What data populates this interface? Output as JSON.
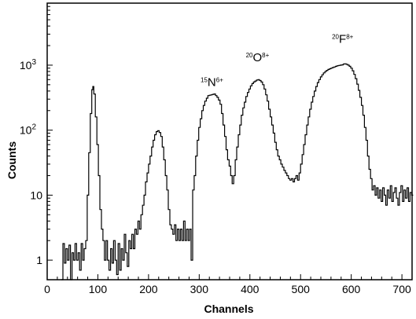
{
  "chart_data": {
    "type": "line",
    "style": "step histogram",
    "title": "",
    "xlabel": "Channels",
    "ylabel": "Counts",
    "xscale": "linear",
    "yscale": "log",
    "xlim": [
      0,
      720
    ],
    "ylim": [
      0.5,
      9000
    ],
    "grid": false,
    "x_ticks": [
      0,
      100,
      200,
      300,
      400,
      500,
      600,
      700
    ],
    "y_ticks": [
      {
        "value": 1,
        "label": "1"
      },
      {
        "value": 10,
        "label": "10"
      },
      {
        "value": 100,
        "label": "10",
        "exp": "2"
      },
      {
        "value": 1000,
        "label": "10",
        "exp": "3"
      }
    ],
    "annotations": [
      {
        "mass": "15",
        "element": "N",
        "charge": "6+",
        "x": 325,
        "y": 480
      },
      {
        "mass": "20",
        "element": "O",
        "charge": "8+",
        "x": 415,
        "y": 1150
      },
      {
        "mass": "20",
        "element": "F",
        "charge": "8+",
        "x": 583,
        "y": 2200
      }
    ],
    "peaks": [
      {
        "label": "",
        "channel": 90,
        "counts": 450
      },
      {
        "label": "",
        "channel": 220,
        "counts": 95
      },
      {
        "label": "15N6+",
        "channel": 330,
        "counts": 350
      },
      {
        "label": "20O8+",
        "channel": 418,
        "counts": 600
      },
      {
        "label": "20F8+",
        "channel": 585,
        "counts": 1050
      }
    ],
    "series": [
      {
        "color": "#000000",
        "points": [
          [
            28,
            0.45
          ],
          [
            31,
            1.8
          ],
          [
            34,
            0.9
          ],
          [
            37,
            1.5
          ],
          [
            40,
            1
          ],
          [
            43,
            1.7
          ],
          [
            46,
            0.45
          ],
          [
            49,
            1.3
          ],
          [
            52,
            1
          ],
          [
            55,
            1.8
          ],
          [
            58,
            1
          ],
          [
            61,
            1.3
          ],
          [
            64,
            0.7
          ],
          [
            67,
            1.8
          ],
          [
            70,
            1
          ],
          [
            73,
            1.5
          ],
          [
            76,
            2
          ],
          [
            79,
            10
          ],
          [
            82,
            45
          ],
          [
            85,
            180
          ],
          [
            88,
            420
          ],
          [
            90,
            470
          ],
          [
            92,
            360
          ],
          [
            95,
            160
          ],
          [
            98,
            60
          ],
          [
            101,
            20
          ],
          [
            104,
            6
          ],
          [
            107,
            3
          ],
          [
            110,
            2
          ],
          [
            113,
            1
          ],
          [
            116,
            2
          ],
          [
            119,
            1
          ],
          [
            122,
            0.7
          ],
          [
            125,
            1.5
          ],
          [
            128,
            0.9
          ],
          [
            131,
            2
          ],
          [
            134,
            1
          ],
          [
            137,
            0.6
          ],
          [
            140,
            1.8
          ],
          [
            143,
            0.7
          ],
          [
            146,
            1.5
          ],
          [
            149,
            1
          ],
          [
            152,
            2.5
          ],
          [
            155,
            1.3
          ],
          [
            158,
            0.8
          ],
          [
            161,
            2
          ],
          [
            164,
            1.5
          ],
          [
            167,
            2.5
          ],
          [
            170,
            1.5
          ],
          [
            173,
            3
          ],
          [
            176,
            2.5
          ],
          [
            179,
            4
          ],
          [
            182,
            3
          ],
          [
            185,
            5
          ],
          [
            188,
            7
          ],
          [
            191,
            10
          ],
          [
            194,
            16
          ],
          [
            197,
            22
          ],
          [
            200,
            30
          ],
          [
            203,
            40
          ],
          [
            206,
            55
          ],
          [
            209,
            70
          ],
          [
            212,
            85
          ],
          [
            215,
            95
          ],
          [
            218,
            98
          ],
          [
            221,
            92
          ],
          [
            224,
            80
          ],
          [
            227,
            55
          ],
          [
            230,
            35
          ],
          [
            233,
            20
          ],
          [
            236,
            12
          ],
          [
            239,
            6
          ],
          [
            242,
            3.5
          ],
          [
            245,
            3
          ],
          [
            248,
            2.5
          ],
          [
            251,
            3.5
          ],
          [
            254,
            2
          ],
          [
            257,
            3
          ],
          [
            260,
            2
          ],
          [
            263,
            3
          ],
          [
            266,
            2
          ],
          [
            269,
            4
          ],
          [
            272,
            2
          ],
          [
            275,
            3
          ],
          [
            278,
            2
          ],
          [
            281,
            3
          ],
          [
            284,
            1
          ],
          [
            287,
            12
          ],
          [
            290,
            20
          ],
          [
            293,
            40
          ],
          [
            296,
            70
          ],
          [
            299,
            110
          ],
          [
            302,
            150
          ],
          [
            305,
            200
          ],
          [
            308,
            240
          ],
          [
            311,
            280
          ],
          [
            314,
            310
          ],
          [
            317,
            340
          ],
          [
            320,
            345
          ],
          [
            323,
            350
          ],
          [
            326,
            355
          ],
          [
            329,
            360
          ],
          [
            332,
            340
          ],
          [
            335,
            320
          ],
          [
            338,
            290
          ],
          [
            341,
            250
          ],
          [
            344,
            180
          ],
          [
            347,
            120
          ],
          [
            350,
            80
          ],
          [
            353,
            50
          ],
          [
            356,
            35
          ],
          [
            359,
            28
          ],
          [
            362,
            20
          ],
          [
            365,
            15
          ],
          [
            368,
            20
          ],
          [
            371,
            35
          ],
          [
            374,
            55
          ],
          [
            377,
            85
          ],
          [
            380,
            120
          ],
          [
            383,
            170
          ],
          [
            386,
            220
          ],
          [
            389,
            270
          ],
          [
            392,
            330
          ],
          [
            395,
            380
          ],
          [
            398,
            430
          ],
          [
            401,
            480
          ],
          [
            404,
            520
          ],
          [
            407,
            550
          ],
          [
            410,
            570
          ],
          [
            413,
            590
          ],
          [
            416,
            600
          ],
          [
            419,
            580
          ],
          [
            422,
            550
          ],
          [
            425,
            500
          ],
          [
            428,
            430
          ],
          [
            431,
            350
          ],
          [
            434,
            280
          ],
          [
            437,
            210
          ],
          [
            440,
            160
          ],
          [
            443,
            120
          ],
          [
            446,
            90
          ],
          [
            449,
            65
          ],
          [
            452,
            50
          ],
          [
            455,
            40
          ],
          [
            458,
            35
          ],
          [
            461,
            30
          ],
          [
            464,
            27
          ],
          [
            467,
            24
          ],
          [
            470,
            22
          ],
          [
            473,
            20
          ],
          [
            476,
            18
          ],
          [
            479,
            17
          ],
          [
            482,
            18
          ],
          [
            485,
            16
          ],
          [
            488,
            18
          ],
          [
            491,
            20
          ],
          [
            494,
            17
          ],
          [
            497,
            22
          ],
          [
            500,
            30
          ],
          [
            503,
            42
          ],
          [
            506,
            60
          ],
          [
            509,
            85
          ],
          [
            512,
            120
          ],
          [
            515,
            160
          ],
          [
            518,
            210
          ],
          [
            521,
            270
          ],
          [
            524,
            330
          ],
          [
            527,
            400
          ],
          [
            530,
            470
          ],
          [
            533,
            540
          ],
          [
            536,
            600
          ],
          [
            539,
            660
          ],
          [
            542,
            710
          ],
          [
            545,
            760
          ],
          [
            548,
            800
          ],
          [
            551,
            830
          ],
          [
            554,
            860
          ],
          [
            557,
            880
          ],
          [
            560,
            900
          ],
          [
            563,
            920
          ],
          [
            566,
            940
          ],
          [
            569,
            960
          ],
          [
            572,
            980
          ],
          [
            575,
            990
          ],
          [
            578,
            1000
          ],
          [
            581,
            1010
          ],
          [
            584,
            1040
          ],
          [
            587,
            1050
          ],
          [
            590,
            1030
          ],
          [
            593,
            1000
          ],
          [
            596,
            960
          ],
          [
            599,
            900
          ],
          [
            602,
            820
          ],
          [
            605,
            720
          ],
          [
            608,
            620
          ],
          [
            611,
            510
          ],
          [
            614,
            410
          ],
          [
            617,
            320
          ],
          [
            620,
            240
          ],
          [
            623,
            170
          ],
          [
            626,
            110
          ],
          [
            629,
            70
          ],
          [
            632,
            40
          ],
          [
            635,
            25
          ],
          [
            638,
            18
          ],
          [
            641,
            12
          ],
          [
            644,
            14
          ],
          [
            647,
            10
          ],
          [
            650,
            13
          ],
          [
            653,
            9
          ],
          [
            656,
            12
          ],
          [
            659,
            8
          ],
          [
            662,
            13
          ],
          [
            665,
            10
          ],
          [
            668,
            7
          ],
          [
            671,
            12
          ],
          [
            674,
            9
          ],
          [
            677,
            14
          ],
          [
            680,
            8
          ],
          [
            683,
            11
          ],
          [
            686,
            13
          ],
          [
            689,
            9
          ],
          [
            692,
            7
          ],
          [
            695,
            11
          ],
          [
            698,
            14
          ],
          [
            701,
            8
          ],
          [
            704,
            12
          ],
          [
            707,
            9
          ],
          [
            710,
            13
          ],
          [
            713,
            8
          ],
          [
            716,
            11
          ],
          [
            719,
            10
          ]
        ]
      }
    ]
  }
}
